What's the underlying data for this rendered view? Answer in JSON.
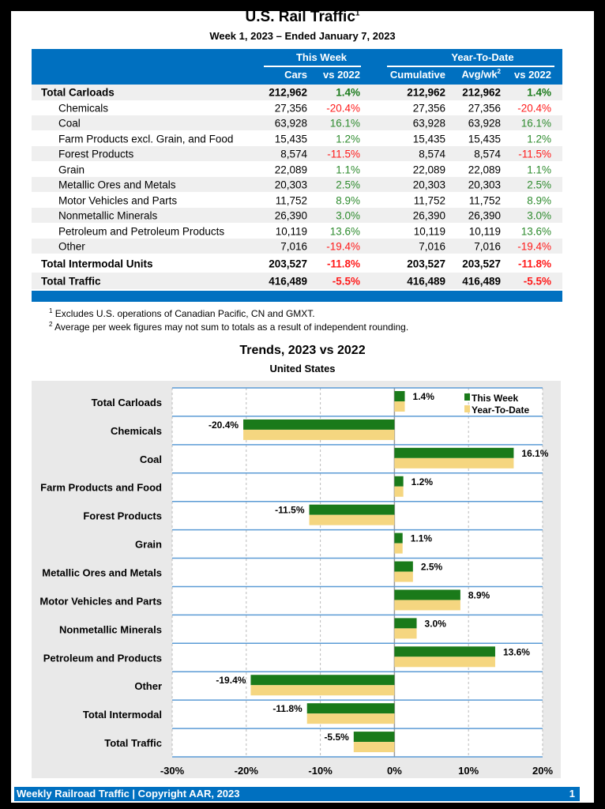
{
  "header": {
    "title": "U.S. Rail Traffic",
    "title_sup": "1",
    "subtitle": "Week 1, 2023 – Ended January 7, 2023"
  },
  "table": {
    "group_this_week": "This Week",
    "group_ytd": "Year-To-Date",
    "columns": [
      "Cars",
      "vs 2022",
      "Cumulative",
      "Avg/wk",
      "vs 2022"
    ],
    "avg_sup": "2",
    "rows": [
      {
        "label": "Total Carloads",
        "bold": true,
        "cars": "212,962",
        "vs": "1.4%",
        "cum": "212,962",
        "avg": "212,962",
        "ytd_vs": "1.4%"
      },
      {
        "label": "Chemicals",
        "cars": "27,356",
        "vs": "-20.4%",
        "cum": "27,356",
        "avg": "27,356",
        "ytd_vs": "-20.4%"
      },
      {
        "label": "Coal",
        "cars": "63,928",
        "vs": "16.1%",
        "cum": "63,928",
        "avg": "63,928",
        "ytd_vs": "16.1%"
      },
      {
        "label": "Farm Products excl. Grain, and Food",
        "cars": "15,435",
        "vs": "1.2%",
        "cum": "15,435",
        "avg": "15,435",
        "ytd_vs": "1.2%"
      },
      {
        "label": "Forest Products",
        "cars": "8,574",
        "vs": "-11.5%",
        "cum": "8,574",
        "avg": "8,574",
        "ytd_vs": "-11.5%"
      },
      {
        "label": "Grain",
        "cars": "22,089",
        "vs": "1.1%",
        "cum": "22,089",
        "avg": "22,089",
        "ytd_vs": "1.1%"
      },
      {
        "label": "Metallic Ores and Metals",
        "cars": "20,303",
        "vs": "2.5%",
        "cum": "20,303",
        "avg": "20,303",
        "ytd_vs": "2.5%"
      },
      {
        "label": "Motor Vehicles and Parts",
        "cars": "11,752",
        "vs": "8.9%",
        "cum": "11,752",
        "avg": "11,752",
        "ytd_vs": "8.9%"
      },
      {
        "label": "Nonmetallic Minerals",
        "cars": "26,390",
        "vs": "3.0%",
        "cum": "26,390",
        "avg": "26,390",
        "ytd_vs": "3.0%"
      },
      {
        "label": "Petroleum and Petroleum Products",
        "cars": "10,119",
        "vs": "13.6%",
        "cum": "10,119",
        "avg": "10,119",
        "ytd_vs": "13.6%"
      },
      {
        "label": "Other",
        "cars": "7,016",
        "vs": "-19.4%",
        "cum": "7,016",
        "avg": "7,016",
        "ytd_vs": "-19.4%"
      },
      {
        "label": "Total Intermodal Units",
        "bold": true,
        "cars": "203,527",
        "vs": "-11.8%",
        "cum": "203,527",
        "avg": "203,527",
        "ytd_vs": "-11.8%"
      },
      {
        "label": "Total Traffic",
        "bold": true,
        "cars": "416,489",
        "vs": "-5.5%",
        "cum": "416,489",
        "avg": "416,489",
        "ytd_vs": "-5.5%"
      }
    ]
  },
  "footnotes": [
    {
      "mark": "1",
      "text": "Excludes U.S. operations of Canadian Pacific, CN and GMXT."
    },
    {
      "mark": "2",
      "text": "Average per week figures may not sum to totals as a result of independent rounding."
    }
  ],
  "chart_data": {
    "type": "bar",
    "orientation": "horizontal",
    "title": "Trends, 2023 vs 2022",
    "subtitle": "United States",
    "categories": [
      "Total Carloads",
      "Chemicals",
      "Coal",
      "Farm Products and Food",
      "Forest Products",
      "Grain",
      "Metallic Ores and Metals",
      "Motor Vehicles and Parts",
      "Nonmetallic Minerals",
      "Petroleum and Products",
      "Other",
      "Total Intermodal",
      "Total Traffic"
    ],
    "series": [
      {
        "name": "This Week",
        "color": "#1a7a1a",
        "values": [
          1.4,
          -20.4,
          16.1,
          1.2,
          -11.5,
          1.1,
          2.5,
          8.9,
          3.0,
          13.6,
          -19.4,
          -11.8,
          -5.5
        ]
      },
      {
        "name": "Year-To-Date",
        "color": "#f5d680",
        "values": [
          1.4,
          -20.4,
          16.1,
          1.2,
          -11.5,
          1.1,
          2.5,
          8.9,
          3.0,
          13.6,
          -19.4,
          -11.8,
          -5.5
        ]
      }
    ],
    "data_labels": [
      "1.4%",
      "-20.4%",
      "16.1%",
      "1.2%",
      "-11.5%",
      "1.1%",
      "2.5%",
      "8.9%",
      "3.0%",
      "13.6%",
      "-19.4%",
      "-11.8%",
      "-5.5%"
    ],
    "xlim": [
      -30,
      20
    ],
    "xticks": [
      "-30%",
      "-20%",
      "-10%",
      "0%",
      "10%",
      "20%"
    ],
    "grid": true,
    "legend": "top-right"
  },
  "footer": {
    "left": "Weekly Railroad Traffic | Copyright AAR, 2023",
    "page": "1"
  }
}
